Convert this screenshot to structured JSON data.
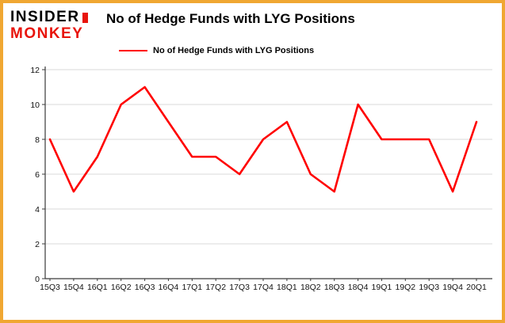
{
  "brand": {
    "line1": "INSIDER",
    "line2": "MONKEY"
  },
  "title": "No of Hedge Funds with LYG Positions",
  "legend": {
    "label": "No of Hedge Funds with LYG Positions",
    "color": "#ff0000"
  },
  "chart_data": {
    "type": "line",
    "title": "No of Hedge Funds with LYG Positions",
    "categories": [
      "15Q3",
      "15Q4",
      "16Q1",
      "16Q2",
      "16Q3",
      "16Q4",
      "17Q1",
      "17Q2",
      "17Q3",
      "17Q4",
      "18Q1",
      "18Q2",
      "18Q3",
      "18Q4",
      "19Q1",
      "19Q2",
      "19Q3",
      "19Q4",
      "20Q1"
    ],
    "values": [
      8,
      5,
      7,
      10,
      11,
      9,
      7,
      7,
      6,
      8,
      9,
      6,
      5,
      10,
      8,
      8,
      8,
      5,
      9
    ],
    "series_name": "No of Hedge Funds with LYG Positions",
    "xlabel": "",
    "ylabel": "",
    "ylim": [
      0,
      12
    ],
    "yticks": [
      0,
      2,
      4,
      6,
      8,
      10,
      12
    ],
    "grid": true,
    "legend_position": "top-left",
    "line_color": "#ff0000"
  },
  "colors": {
    "border": "#f0a732",
    "grid": "#d8d8d8",
    "axis": "#3a3a3a",
    "logo_red": "#e8140c",
    "text": "#000000",
    "background": "#ffffff"
  }
}
